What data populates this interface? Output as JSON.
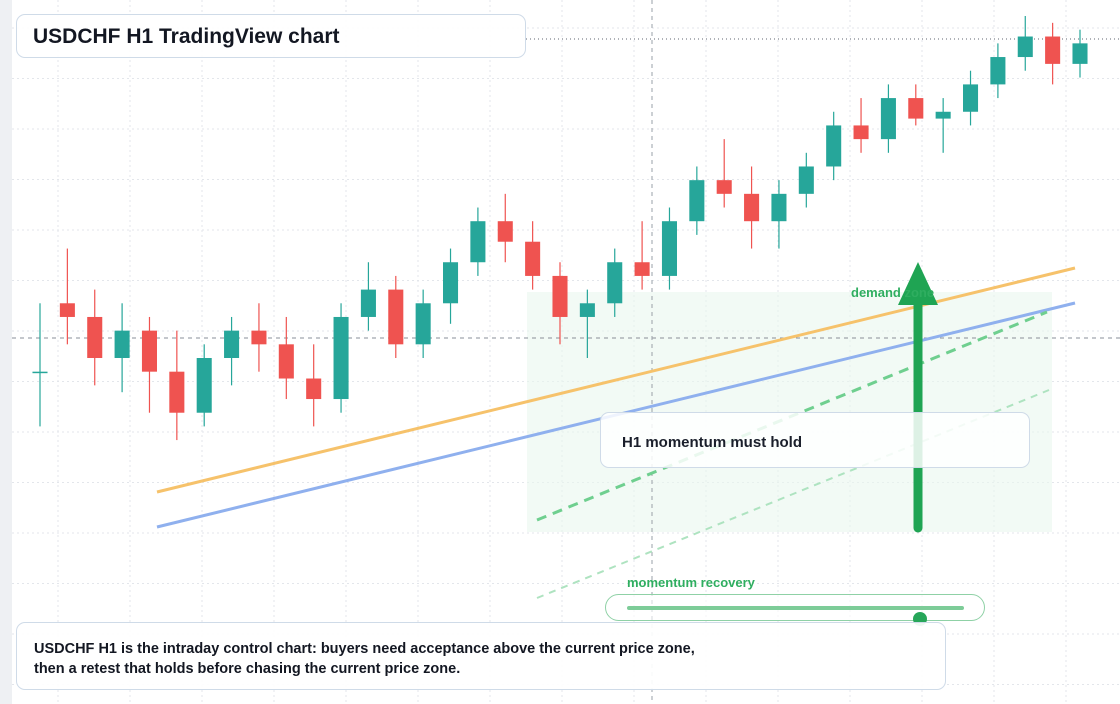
{
  "header": {
    "title": "USDCHF H1 TradingView chart"
  },
  "annotations": {
    "momentum_box": "H1 momentum must hold",
    "recovery_label": "momentum recovery",
    "recovery_value": 0.87,
    "demand_label": "demand zone"
  },
  "caption": {
    "text": "USDCHF H1 is the intraday control chart: buyers need acceptance above the current price zone, then a retest that holds before chasing the current price zone."
  },
  "colors": {
    "bull": "#26a69a",
    "bear": "#ef5350",
    "orange_line": "#f6c26b",
    "blue_line": "#8fb0ee",
    "green_accent": "#27a65a",
    "grid": "#e3e6eb"
  },
  "chart_data": {
    "type": "candlestick",
    "symbol": "USDCHF",
    "timeframe": "H1",
    "title": "USDCHF H1 TradingView chart",
    "y_unit": "price (scale not printed)",
    "ylim": [
      0,
      100
    ],
    "candles": [
      [
        48,
        58,
        40,
        48
      ],
      [
        58,
        66,
        52,
        56
      ],
      [
        56,
        60,
        46,
        50
      ],
      [
        50,
        58,
        45,
        54
      ],
      [
        54,
        56,
        42,
        48
      ],
      [
        48,
        54,
        38,
        42
      ],
      [
        42,
        52,
        40,
        50
      ],
      [
        50,
        56,
        46,
        54
      ],
      [
        54,
        58,
        48,
        52
      ],
      [
        52,
        56,
        44,
        47
      ],
      [
        47,
        52,
        40,
        44
      ],
      [
        44,
        58,
        42,
        56
      ],
      [
        56,
        64,
        54,
        60
      ],
      [
        60,
        62,
        50,
        52
      ],
      [
        52,
        60,
        50,
        58
      ],
      [
        58,
        66,
        55,
        64
      ],
      [
        64,
        72,
        62,
        70
      ],
      [
        70,
        74,
        64,
        67
      ],
      [
        67,
        70,
        60,
        62
      ],
      [
        62,
        64,
        52,
        56
      ],
      [
        56,
        60,
        50,
        58
      ],
      [
        58,
        66,
        56,
        64
      ],
      [
        64,
        70,
        60,
        62
      ],
      [
        62,
        72,
        60,
        70
      ],
      [
        70,
        78,
        68,
        76
      ],
      [
        76,
        82,
        72,
        74
      ],
      [
        74,
        78,
        66,
        70
      ],
      [
        70,
        76,
        66,
        74
      ],
      [
        74,
        80,
        72,
        78
      ],
      [
        78,
        86,
        76,
        84
      ],
      [
        84,
        88,
        80,
        82
      ],
      [
        82,
        90,
        80,
        88
      ],
      [
        88,
        90,
        84,
        85
      ],
      [
        85,
        88,
        80,
        86
      ],
      [
        86,
        92,
        84,
        90
      ],
      [
        90,
        96,
        88,
        94
      ],
      [
        94,
        100,
        92,
        97
      ],
      [
        97,
        99,
        90,
        93
      ],
      [
        93,
        98,
        91,
        96
      ]
    ],
    "trendlines": [
      {
        "name": "upper",
        "color": "orange"
      },
      {
        "name": "lower",
        "color": "blue"
      }
    ],
    "zones": [
      {
        "label": "demand zone"
      }
    ],
    "grid": true
  }
}
